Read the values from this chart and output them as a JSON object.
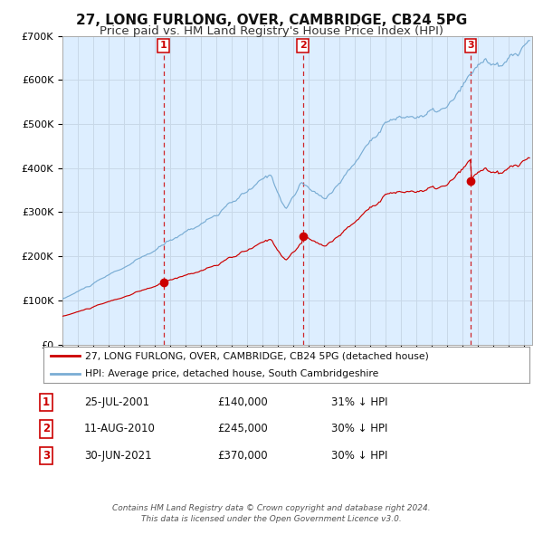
{
  "title": "27, LONG FURLONG, OVER, CAMBRIDGE, CB24 5PG",
  "subtitle": "Price paid vs. HM Land Registry's House Price Index (HPI)",
  "title_fontsize": 11,
  "subtitle_fontsize": 9.5,
  "background_color": "#ffffff",
  "plot_bg_color": "#ddeeff",
  "hpi_color": "#7aadd4",
  "price_color": "#cc0000",
  "grid_color": "#c8d8e8",
  "sale_marker_color": "#cc0000",
  "vline_color": "#cc0000",
  "ylim": [
    0,
    700000
  ],
  "yticks": [
    0,
    100000,
    200000,
    300000,
    400000,
    500000,
    600000,
    700000
  ],
  "sales": [
    {
      "label": "1",
      "date_num": 2001.56,
      "price": 140000,
      "pct": "31%",
      "date_str": "25-JUL-2001",
      "price_str": "£140,000"
    },
    {
      "label": "2",
      "date_num": 2010.61,
      "price": 245000,
      "pct": "30%",
      "date_str": "11-AUG-2010",
      "price_str": "£245,000"
    },
    {
      "label": "3",
      "date_num": 2021.5,
      "price": 370000,
      "pct": "30%",
      "date_str": "30-JUN-2021",
      "price_str": "£370,000"
    }
  ],
  "legend_entries": [
    "27, LONG FURLONG, OVER, CAMBRIDGE, CB24 5PG (detached house)",
    "HPI: Average price, detached house, South Cambridgeshire"
  ],
  "footer_line1": "Contains HM Land Registry data © Crown copyright and database right 2024.",
  "footer_line2": "This data is licensed under the Open Government Licence v3.0.",
  "xmin": 1995.0,
  "xmax": 2025.5
}
